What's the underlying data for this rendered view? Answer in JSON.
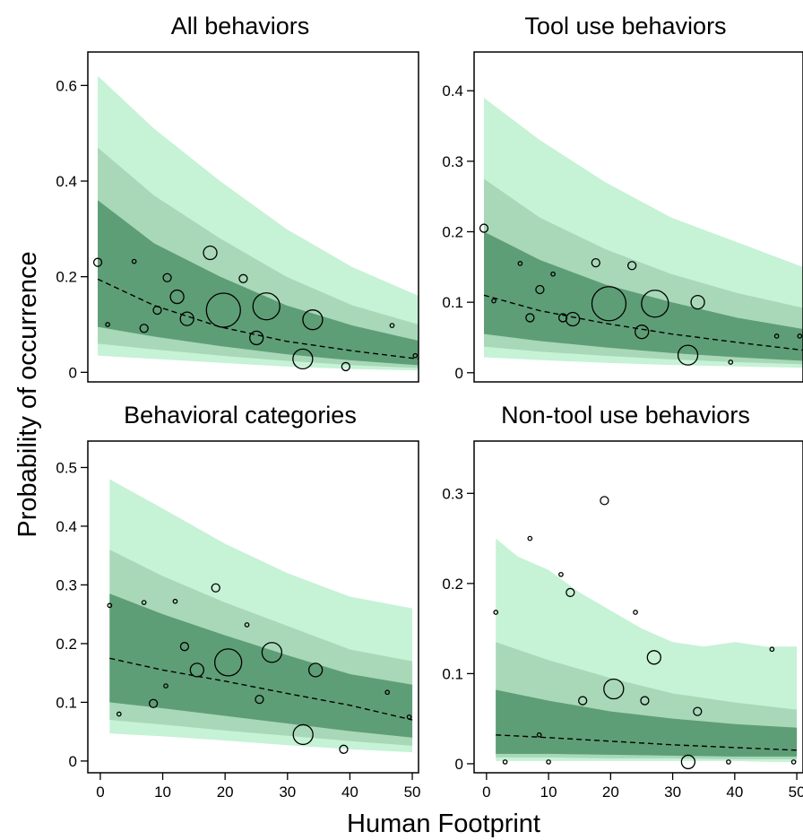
{
  "figure": {
    "ylabel": "Probability of occurrence",
    "xlabel": "Human Footprint"
  },
  "band_colors": [
    "#c6f2d6",
    "#a8d8b8",
    "#7fbf95",
    "#5e9e76"
  ],
  "point_color": "#000000",
  "chart_data": [
    {
      "type": "line",
      "title": "All behaviors",
      "xlim": [
        0,
        50
      ],
      "ylim": [
        -0.02,
        0.67
      ],
      "xticks": [
        0,
        10,
        20,
        30,
        40,
        50
      ],
      "yticks": [
        0,
        0.2,
        0.4,
        0.6
      ],
      "ytick_labels": [
        "0",
        "0.2",
        "0.4",
        "0.6"
      ],
      "show_xticks": false,
      "fit": {
        "x": [
          1.5,
          10,
          20,
          30,
          40,
          50
        ],
        "y": [
          0.195,
          0.14,
          0.095,
          0.065,
          0.045,
          0.028
        ]
      },
      "bands": [
        {
          "x": [
            1.5,
            10,
            20,
            30,
            40,
            50
          ],
          "lower": [
            0.035,
            0.028,
            0.02,
            0.012,
            0.007,
            0.004
          ],
          "upper": [
            0.62,
            0.51,
            0.4,
            0.3,
            0.22,
            0.16
          ]
        },
        {
          "x": [
            1.5,
            10,
            20,
            30,
            40,
            50
          ],
          "lower": [
            0.06,
            0.048,
            0.035,
            0.024,
            0.015,
            0.009
          ],
          "upper": [
            0.47,
            0.37,
            0.28,
            0.2,
            0.14,
            0.1
          ]
        },
        {
          "x": [
            1.5,
            10,
            20,
            30,
            40,
            50
          ],
          "lower": [
            0.095,
            0.075,
            0.055,
            0.038,
            0.025,
            0.015
          ],
          "upper": [
            0.36,
            0.27,
            0.2,
            0.14,
            0.098,
            0.066
          ]
        }
      ],
      "points": [
        {
          "x": 1.5,
          "y": 0.23,
          "size": 1
        },
        {
          "x": 3,
          "y": 0.1,
          "size": 0
        },
        {
          "x": 7,
          "y": 0.232,
          "size": 0
        },
        {
          "x": 8.5,
          "y": 0.092,
          "size": 1
        },
        {
          "x": 10.5,
          "y": 0.13,
          "size": 1
        },
        {
          "x": 12,
          "y": 0.198,
          "size": 1
        },
        {
          "x": 13.5,
          "y": 0.158,
          "size": 2
        },
        {
          "x": 15,
          "y": 0.112,
          "size": 2
        },
        {
          "x": 18.5,
          "y": 0.25,
          "size": 2
        },
        {
          "x": 20.5,
          "y": 0.13,
          "size": 5
        },
        {
          "x": 23.5,
          "y": 0.196,
          "size": 1
        },
        {
          "x": 25.5,
          "y": 0.072,
          "size": 2
        },
        {
          "x": 27,
          "y": 0.138,
          "size": 4
        },
        {
          "x": 32.5,
          "y": 0.028,
          "size": 3
        },
        {
          "x": 34,
          "y": 0.11,
          "size": 3
        },
        {
          "x": 39,
          "y": 0.012,
          "size": 1
        },
        {
          "x": 46,
          "y": 0.098,
          "size": 0
        },
        {
          "x": 49.5,
          "y": 0.035,
          "size": 0
        }
      ]
    },
    {
      "type": "line",
      "title": "Tool use behaviors",
      "xlim": [
        0,
        50
      ],
      "ylim": [
        -0.013,
        0.455
      ],
      "xticks": [
        0,
        10,
        20,
        30,
        40,
        50
      ],
      "yticks": [
        0,
        0.1,
        0.2,
        0.3,
        0.4
      ],
      "ytick_labels": [
        "0",
        "0.1",
        "0.2",
        "0.3",
        "0.4"
      ],
      "show_xticks": false,
      "fit": {
        "x": [
          1.5,
          10,
          20,
          30,
          40,
          50
        ],
        "y": [
          0.11,
          0.088,
          0.07,
          0.055,
          0.043,
          0.032
        ]
      },
      "bands": [
        {
          "x": [
            1.5,
            10,
            20,
            30,
            40,
            50
          ],
          "lower": [
            0.022,
            0.018,
            0.014,
            0.011,
            0.009,
            0.007
          ],
          "upper": [
            0.39,
            0.33,
            0.27,
            0.22,
            0.185,
            0.15
          ]
        },
        {
          "x": [
            1.5,
            10,
            20,
            30,
            40,
            50
          ],
          "lower": [
            0.037,
            0.03,
            0.024,
            0.019,
            0.015,
            0.012
          ],
          "upper": [
            0.275,
            0.22,
            0.175,
            0.14,
            0.113,
            0.092
          ]
        },
        {
          "x": [
            1.5,
            10,
            20,
            30,
            40,
            50
          ],
          "lower": [
            0.055,
            0.045,
            0.036,
            0.028,
            0.022,
            0.017
          ],
          "upper": [
            0.2,
            0.16,
            0.125,
            0.1,
            0.078,
            0.062
          ]
        }
      ],
      "points": [
        {
          "x": 1.5,
          "y": 0.205,
          "size": 1
        },
        {
          "x": 3,
          "y": 0.102,
          "size": 0
        },
        {
          "x": 7,
          "y": 0.155,
          "size": 0
        },
        {
          "x": 8.5,
          "y": 0.078,
          "size": 1
        },
        {
          "x": 10,
          "y": 0.118,
          "size": 1
        },
        {
          "x": 12,
          "y": 0.14,
          "size": 0
        },
        {
          "x": 13.5,
          "y": 0.078,
          "size": 1
        },
        {
          "x": 15,
          "y": 0.076,
          "size": 2
        },
        {
          "x": 18.5,
          "y": 0.156,
          "size": 1
        },
        {
          "x": 20.5,
          "y": 0.098,
          "size": 5
        },
        {
          "x": 24,
          "y": 0.152,
          "size": 1
        },
        {
          "x": 25.5,
          "y": 0.058,
          "size": 2
        },
        {
          "x": 27.5,
          "y": 0.098,
          "size": 4
        },
        {
          "x": 32.5,
          "y": 0.025,
          "size": 3
        },
        {
          "x": 34,
          "y": 0.1,
          "size": 2
        },
        {
          "x": 39,
          "y": 0.015,
          "size": 0
        },
        {
          "x": 46,
          "y": 0.052,
          "size": 0
        },
        {
          "x": 49.5,
          "y": 0.052,
          "size": 0
        }
      ]
    },
    {
      "type": "line",
      "title": "Behavioral categories",
      "xlim": [
        -2,
        51
      ],
      "ylim": [
        -0.02,
        0.545
      ],
      "xticks": [
        0,
        10,
        20,
        30,
        40,
        50
      ],
      "yticks": [
        0,
        0.1,
        0.2,
        0.3,
        0.4,
        0.5
      ],
      "ytick_labels": [
        "0",
        "0.1",
        "0.2",
        "0.3",
        "0.4",
        "0.5"
      ],
      "show_xticks": true,
      "fit": {
        "x": [
          1.5,
          10,
          20,
          30,
          40,
          50
        ],
        "y": [
          0.175,
          0.155,
          0.136,
          0.115,
          0.095,
          0.07
        ]
      },
      "bands": [
        {
          "x": [
            1.5,
            10,
            20,
            30,
            40,
            50
          ],
          "lower": [
            0.047,
            0.042,
            0.035,
            0.027,
            0.02,
            0.015
          ],
          "upper": [
            0.48,
            0.43,
            0.37,
            0.32,
            0.28,
            0.26
          ]
        },
        {
          "x": [
            1.5,
            10,
            20,
            30,
            40,
            50
          ],
          "lower": [
            0.07,
            0.062,
            0.052,
            0.043,
            0.034,
            0.026
          ],
          "upper": [
            0.36,
            0.315,
            0.27,
            0.23,
            0.19,
            0.17
          ]
        },
        {
          "x": [
            1.5,
            10,
            20,
            30,
            40,
            50
          ],
          "lower": [
            0.1,
            0.09,
            0.077,
            0.064,
            0.051,
            0.04
          ],
          "upper": [
            0.285,
            0.25,
            0.214,
            0.18,
            0.148,
            0.13
          ]
        }
      ],
      "points": [
        {
          "x": 1.5,
          "y": 0.265,
          "size": 0
        },
        {
          "x": 3,
          "y": 0.08,
          "size": 0
        },
        {
          "x": 7,
          "y": 0.27,
          "size": 0
        },
        {
          "x": 8.5,
          "y": 0.098,
          "size": 1
        },
        {
          "x": 10.5,
          "y": 0.128,
          "size": 0
        },
        {
          "x": 12,
          "y": 0.272,
          "size": 0
        },
        {
          "x": 13.5,
          "y": 0.195,
          "size": 1
        },
        {
          "x": 15.5,
          "y": 0.155,
          "size": 2
        },
        {
          "x": 18.5,
          "y": 0.295,
          "size": 1
        },
        {
          "x": 20.5,
          "y": 0.168,
          "size": 4
        },
        {
          "x": 23.5,
          "y": 0.232,
          "size": 0
        },
        {
          "x": 25.5,
          "y": 0.105,
          "size": 1
        },
        {
          "x": 27.5,
          "y": 0.185,
          "size": 3
        },
        {
          "x": 32.5,
          "y": 0.045,
          "size": 3
        },
        {
          "x": 34.5,
          "y": 0.155,
          "size": 2
        },
        {
          "x": 39,
          "y": 0.02,
          "size": 1
        },
        {
          "x": 46,
          "y": 0.117,
          "size": 0
        },
        {
          "x": 49.5,
          "y": 0.075,
          "size": 0
        }
      ]
    },
    {
      "type": "line",
      "title": "Non-tool use behaviors",
      "xlim": [
        -2,
        51
      ],
      "ylim": [
        -0.01,
        0.358
      ],
      "xticks": [
        0,
        10,
        20,
        30,
        40,
        50
      ],
      "yticks": [
        0,
        0.1,
        0.2,
        0.3
      ],
      "ytick_labels": [
        "0",
        "0.1",
        "0.2",
        "0.3"
      ],
      "show_xticks": true,
      "fit": {
        "x": [
          1.5,
          10,
          20,
          30,
          40,
          50
        ],
        "y": [
          0.032,
          0.029,
          0.025,
          0.021,
          0.018,
          0.015
        ]
      },
      "bands": [
        {
          "x": [
            1.5,
            5,
            10,
            15,
            20,
            25,
            30,
            35,
            40,
            45,
            50
          ],
          "lower": [
            0.003,
            0.003,
            0.003,
            0.003,
            0.003,
            0.003,
            0.003,
            0.003,
            0.003,
            0.002,
            0.002
          ],
          "upper": [
            0.25,
            0.23,
            0.215,
            0.19,
            0.17,
            0.15,
            0.135,
            0.13,
            0.135,
            0.13,
            0.13
          ]
        },
        {
          "x": [
            1.5,
            10,
            20,
            30,
            40,
            50
          ],
          "lower": [
            0.007,
            0.007,
            0.006,
            0.006,
            0.005,
            0.005
          ],
          "upper": [
            0.135,
            0.115,
            0.095,
            0.078,
            0.068,
            0.06
          ]
        },
        {
          "x": [
            1.5,
            10,
            20,
            30,
            40,
            50
          ],
          "lower": [
            0.011,
            0.011,
            0.01,
            0.009,
            0.008,
            0.008
          ],
          "upper": [
            0.082,
            0.07,
            0.058,
            0.05,
            0.044,
            0.04
          ]
        }
      ],
      "points": [
        {
          "x": 1.5,
          "y": 0.168,
          "size": 0
        },
        {
          "x": 3,
          "y": 0.002,
          "size": 0
        },
        {
          "x": 7,
          "y": 0.25,
          "size": 0
        },
        {
          "x": 8.5,
          "y": 0.032,
          "size": 0
        },
        {
          "x": 10,
          "y": 0.002,
          "size": 0
        },
        {
          "x": 12,
          "y": 0.21,
          "size": 0
        },
        {
          "x": 13.5,
          "y": 0.19,
          "size": 1
        },
        {
          "x": 15.5,
          "y": 0.07,
          "size": 1
        },
        {
          "x": 19,
          "y": 0.292,
          "size": 1
        },
        {
          "x": 20.5,
          "y": 0.083,
          "size": 3
        },
        {
          "x": 24,
          "y": 0.168,
          "size": 0
        },
        {
          "x": 25.5,
          "y": 0.07,
          "size": 1
        },
        {
          "x": 27,
          "y": 0.118,
          "size": 2
        },
        {
          "x": 32.5,
          "y": 0.002,
          "size": 2
        },
        {
          "x": 34,
          "y": 0.058,
          "size": 1
        },
        {
          "x": 39,
          "y": 0.002,
          "size": 0
        },
        {
          "x": 46,
          "y": 0.127,
          "size": 0
        },
        {
          "x": 49.5,
          "y": 0.002,
          "size": 0
        }
      ]
    }
  ]
}
